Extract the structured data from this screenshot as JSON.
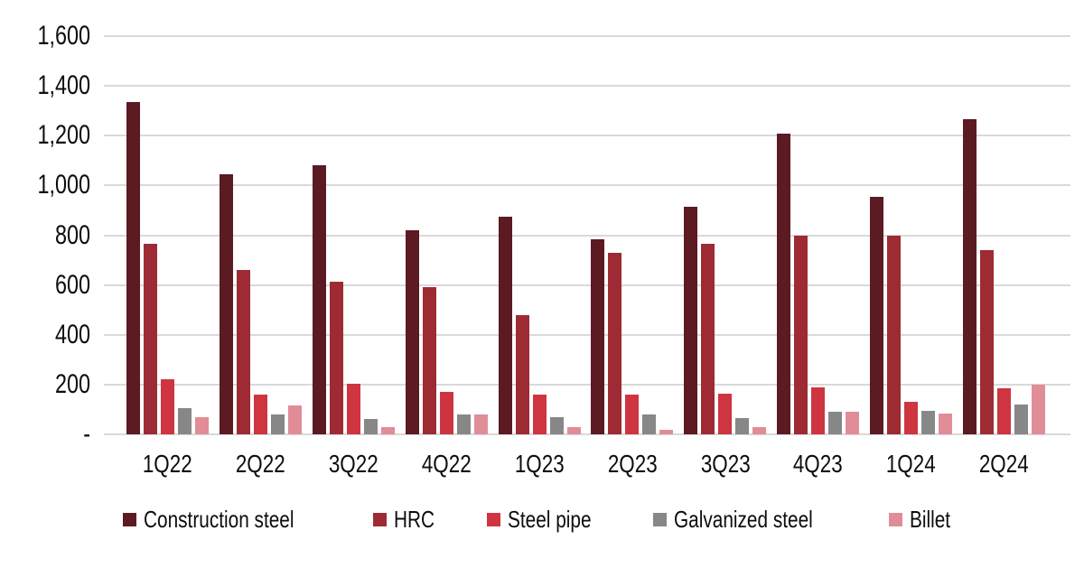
{
  "chart_data": {
    "type": "bar",
    "title": "",
    "xlabel": "",
    "ylabel": "",
    "categories": [
      "1Q22",
      "2Q22",
      "3Q22",
      "4Q22",
      "1Q23",
      "2Q23",
      "3Q23",
      "4Q23",
      "1Q24",
      "2Q24"
    ],
    "series": [
      {
        "name": "Construction steel",
        "color": "#5C1A22",
        "values": [
          1335,
          1045,
          1080,
          820,
          875,
          785,
          915,
          1210,
          955,
          1265
        ]
      },
      {
        "name": "HRC",
        "color": "#9E2B33",
        "values": [
          765,
          660,
          615,
          590,
          480,
          730,
          765,
          800,
          800,
          740
        ]
      },
      {
        "name": "Steel pipe",
        "color": "#CE3540",
        "values": [
          220,
          160,
          205,
          170,
          160,
          160,
          165,
          190,
          130,
          185
        ]
      },
      {
        "name": "Galvanized steel",
        "color": "#878787",
        "values": [
          105,
          80,
          60,
          80,
          70,
          80,
          65,
          90,
          95,
          120
        ]
      },
      {
        "name": "Billet",
        "color": "#E18D97",
        "values": [
          70,
          115,
          30,
          80,
          30,
          20,
          30,
          90,
          85,
          200
        ]
      }
    ],
    "ylim": [
      0,
      1600
    ],
    "ytick_step": 200,
    "ytick_labels": [
      "-",
      "200",
      "400",
      "600",
      "800",
      "1,000",
      "1,200",
      "1,400",
      "1,600"
    ],
    "grid": true,
    "gridline_color": "#D9D9D9",
    "legend_position": "bottom"
  },
  "colors": {
    "background": "#FFFFFF",
    "text": "#0D0D0D"
  }
}
